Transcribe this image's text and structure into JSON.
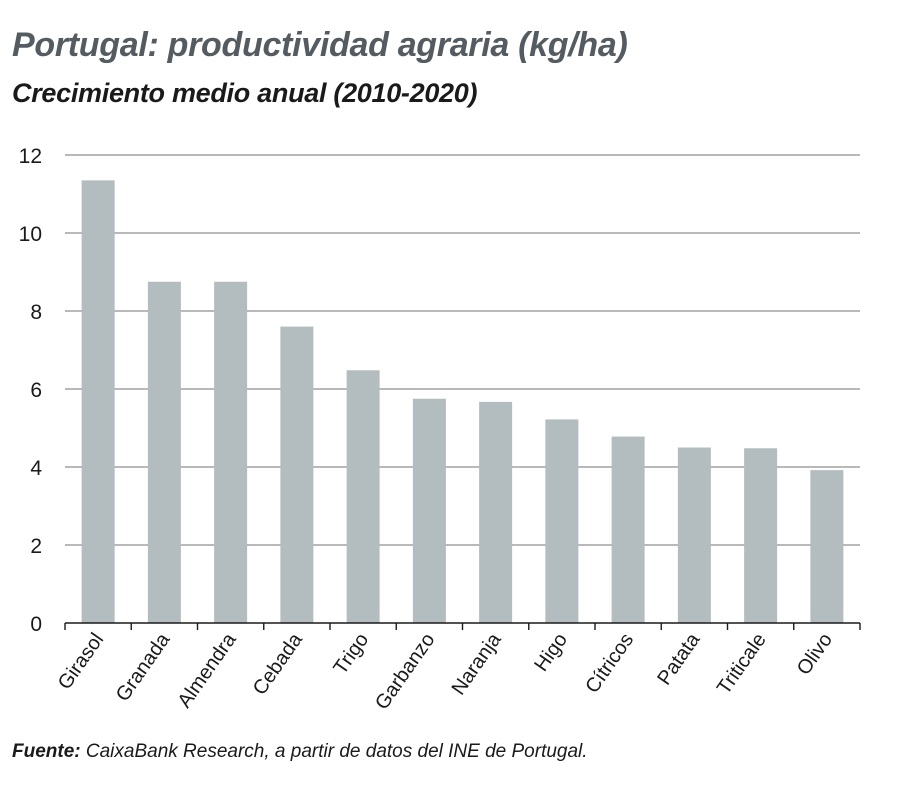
{
  "chart_data": {
    "type": "bar",
    "title": "Portugal: productividad agraria (kg/ha)",
    "subtitle": "Crecimiento medio anual (2010-2020)",
    "categories": [
      "Girasol",
      "Granada",
      "Almendra",
      "Cebada",
      "Trigo",
      "Garbanzo",
      "Naranja",
      "Higo",
      "Cítricos",
      "Patata",
      "Triticale",
      "Olivo"
    ],
    "values": [
      11.35,
      8.75,
      8.75,
      7.6,
      6.48,
      5.75,
      5.67,
      5.22,
      4.78,
      4.5,
      4.48,
      3.92
    ],
    "ylim": [
      0,
      12
    ],
    "yticks": [
      0,
      2,
      4,
      6,
      8,
      10,
      12
    ],
    "xlabel": "",
    "ylabel": "",
    "grid": true,
    "colors": {
      "bar": "#b3bcbe",
      "grid": "#8f8f8f",
      "axis": "#1a1a1a",
      "title": "#545b61"
    }
  },
  "source": {
    "label": "Fuente:",
    "text": " CaixaBank Research, a partir de datos del INE de Portugal."
  }
}
